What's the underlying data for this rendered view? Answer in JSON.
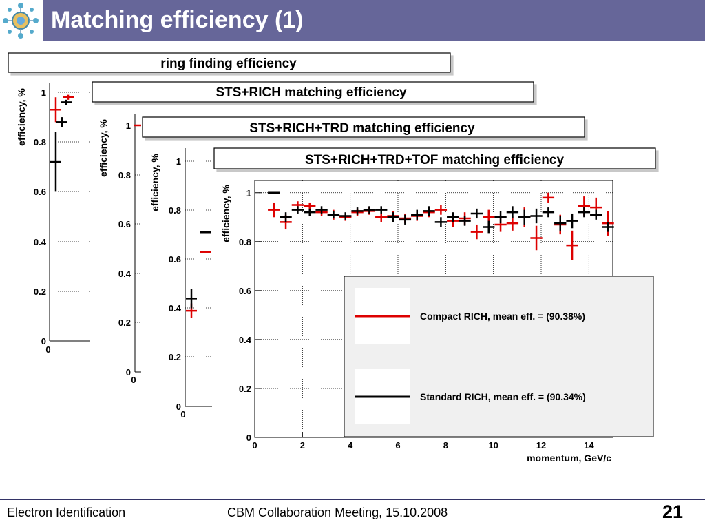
{
  "slide": {
    "title": "Matching efficiency (1)",
    "footer_left": "Electron Identification",
    "footer_center": "CBM Collaboration Meeting, 15.10.2008",
    "page_number": "21",
    "logo_icon": "cbm-logo-icon",
    "accent_color": "#666699"
  },
  "panels": [
    {
      "title": "ring finding efficiency",
      "ylabel": "efficiency, %",
      "yticks": [
        "1",
        "0.8",
        "0.6",
        "0.4",
        "0.2",
        "0"
      ],
      "xticks": [
        "0"
      ]
    },
    {
      "title": "STS+RICH matching efficiency",
      "ylabel": "efficiency, %",
      "yticks": [
        "1",
        "0.8",
        "0.6",
        "0.4",
        "0.2",
        "0"
      ],
      "xticks": [
        "0"
      ]
    },
    {
      "title": "STS+RICH+TRD matching efficiency",
      "ylabel": "efficiency, %",
      "yticks": [
        "1",
        "0.8",
        "0.6",
        "0.4",
        "0.2",
        "0"
      ],
      "xticks": [
        "0"
      ]
    }
  ],
  "chart_data": {
    "type": "scatter",
    "title": "STS+RICH+TRD+TOF matching efficiency",
    "xlabel": "momentum, GeV/c",
    "ylabel": "efficiency, %",
    "xlim": [
      0,
      15
    ],
    "ylim": [
      0,
      1.05
    ],
    "xticks": [
      "0",
      "2",
      "4",
      "6",
      "8",
      "10",
      "12",
      "14"
    ],
    "yticks": [
      "0",
      "0.2",
      "0.4",
      "0.6",
      "0.8",
      "1"
    ],
    "grid": true,
    "legend_position": "bottom-right",
    "series": [
      {
        "name": "Compact RICH, mean eff. = (90.38%)",
        "color": "#dd0000",
        "x": [
          0.8,
          1.3,
          1.8,
          2.3,
          2.8,
          3.3,
          3.8,
          4.3,
          4.8,
          5.3,
          5.8,
          6.3,
          6.8,
          7.3,
          7.8,
          8.3,
          8.8,
          9.3,
          9.8,
          10.3,
          10.8,
          11.3,
          11.8,
          12.3,
          12.8,
          13.3,
          13.8,
          14.3,
          14.8
        ],
        "y": [
          0.93,
          0.88,
          0.95,
          0.945,
          0.92,
          0.91,
          0.9,
          0.92,
          0.925,
          0.9,
          0.905,
          0.895,
          0.905,
          0.92,
          0.93,
          0.885,
          0.895,
          0.84,
          0.9,
          0.87,
          0.875,
          0.9,
          0.815,
          0.98,
          0.87,
          0.785,
          0.945,
          0.94,
          0.875
        ],
        "err": [
          0.03,
          0.03,
          0.015,
          0.015,
          0.015,
          0.02,
          0.015,
          0.015,
          0.015,
          0.02,
          0.02,
          0.02,
          0.02,
          0.02,
          0.02,
          0.025,
          0.025,
          0.03,
          0.03,
          0.03,
          0.03,
          0.04,
          0.05,
          0.02,
          0.04,
          0.06,
          0.04,
          0.04,
          0.05
        ]
      },
      {
        "name": "Standard RICH, mean eff. = (90.34%)",
        "color": "#000000",
        "x": [
          0.8,
          1.3,
          1.8,
          2.3,
          2.8,
          3.3,
          3.8,
          4.3,
          4.8,
          5.3,
          5.8,
          6.3,
          6.8,
          7.3,
          7.8,
          8.3,
          8.8,
          9.3,
          9.8,
          10.3,
          10.8,
          11.3,
          11.8,
          12.3,
          12.8,
          13.3,
          13.8,
          14.3,
          14.8
        ],
        "y": [
          1.0,
          0.9,
          0.93,
          0.92,
          0.93,
          0.91,
          0.905,
          0.925,
          0.93,
          0.93,
          0.9,
          0.89,
          0.91,
          0.925,
          0.88,
          0.9,
          0.885,
          0.915,
          0.86,
          0.9,
          0.92,
          0.9,
          0.905,
          0.92,
          0.875,
          0.885,
          0.92,
          0.91,
          0.86
        ],
        "err": [
          0.0,
          0.02,
          0.015,
          0.015,
          0.015,
          0.015,
          0.015,
          0.015,
          0.015,
          0.015,
          0.02,
          0.02,
          0.02,
          0.02,
          0.02,
          0.02,
          0.02,
          0.02,
          0.025,
          0.025,
          0.025,
          0.03,
          0.03,
          0.02,
          0.03,
          0.03,
          0.02,
          0.02,
          0.02
        ]
      }
    ],
    "partial_panels": [
      {
        "red": [
          [
            0.3,
            0.93,
            0.05
          ],
          [
            0.9,
            0.98,
            0.01
          ]
        ],
        "black": [
          [
            0.3,
            0.72,
            0.12
          ],
          [
            0.6,
            0.88,
            0.02
          ],
          [
            0.8,
            0.96,
            0.01
          ]
        ]
      },
      {
        "red": [
          [
            0.2,
            1.0,
            0.0
          ]
        ],
        "black": []
      },
      {
        "red": [
          [
            0.3,
            0.39,
            0.03
          ],
          [
            1.0,
            0.63,
            0.0
          ]
        ],
        "black": [
          [
            0.3,
            0.44,
            0.04
          ],
          [
            1.0,
            0.71,
            0.0
          ]
        ]
      }
    ]
  }
}
